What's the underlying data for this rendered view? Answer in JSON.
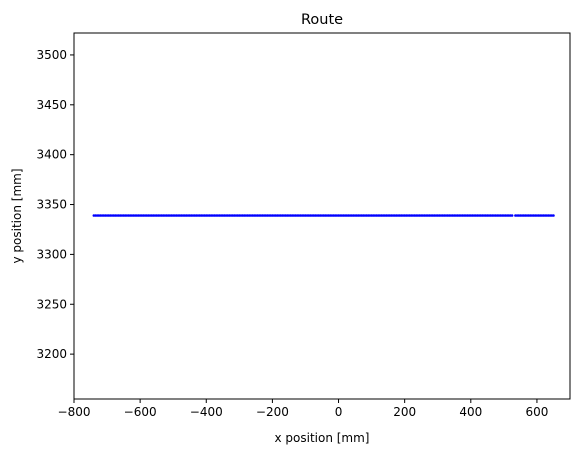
{
  "chart_data": {
    "type": "scatter",
    "title": "Route",
    "xlabel": "x position [mm]",
    "ylabel": "y position [mm]",
    "xlim": [
      -800,
      700
    ],
    "ylim": [
      3155,
      3522
    ],
    "xticks": [
      -800,
      -600,
      -400,
      -200,
      0,
      200,
      400,
      600
    ],
    "yticks": [
      3200,
      3250,
      3300,
      3350,
      3400,
      3450,
      3500
    ],
    "grid": false,
    "legend": "none",
    "series": [
      {
        "color": "#0000ff",
        "marker": "dot",
        "x_start": -740,
        "x_end": 650,
        "x_step": 5,
        "gap": [
          527,
          533
        ],
        "y": 3339
      }
    ]
  }
}
